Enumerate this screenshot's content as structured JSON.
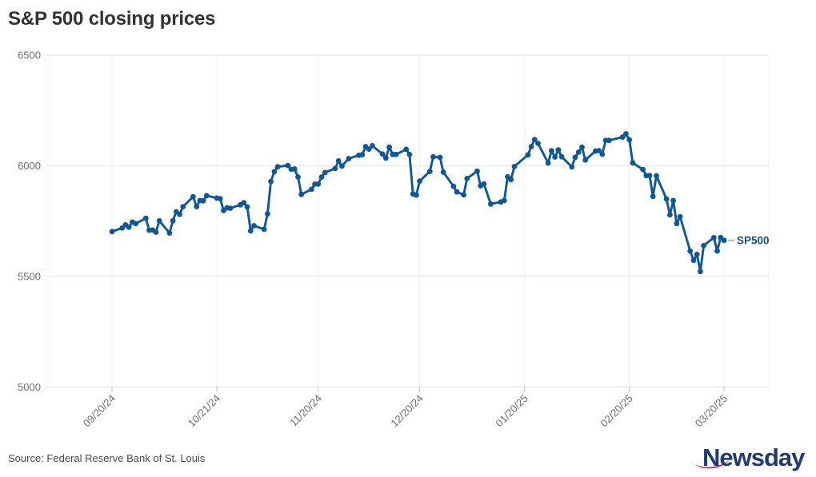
{
  "title": "S&P 500 closing prices",
  "source": "Source: Federal Reserve Bank of St. Louis",
  "footer": {
    "logo_text": "Newsday"
  },
  "colors": {
    "line": "#0f5895",
    "point": "#0f5895",
    "end_label": "#14517f",
    "leader_dash": "#9a9a9a",
    "h_grid": "#e2e2e2",
    "v_grid": "#f0f0f0",
    "tick": "#c9c9c9",
    "axis_text": "#6e6e6e",
    "title_text": "#323232",
    "logo_navy": "#1e3c6f",
    "logo_red": "#cc2333"
  },
  "chart_data": {
    "type": "line",
    "title": "S&P 500 closing prices",
    "xlabel": "",
    "ylabel": "",
    "ylim": [
      5000,
      6500
    ],
    "grid": "both",
    "legend_position": "end-of-line",
    "x_range": [
      "2024-09-20",
      "2025-03-20"
    ],
    "y_ticks": [
      6500,
      6000,
      5500,
      5000
    ],
    "x_ticks": [
      {
        "date": "2024-09-20",
        "label": "09/20/24"
      },
      {
        "date": "2024-10-21",
        "label": "10/21/24"
      },
      {
        "date": "2024-11-20",
        "label": "11/20/24"
      },
      {
        "date": "2024-12-20",
        "label": "12/20/24"
      },
      {
        "date": "2025-01-20",
        "label": "01/20/25"
      },
      {
        "date": "2025-02-20",
        "label": "02/20/25"
      },
      {
        "date": "2025-03-20",
        "label": "03/20/25"
      }
    ],
    "series": [
      {
        "name": "SP500",
        "data": [
          [
            "2024-09-20",
            5702.55
          ],
          [
            "2024-09-23",
            5718.57
          ],
          [
            "2024-09-24",
            5732.93
          ],
          [
            "2024-09-25",
            5722.26
          ],
          [
            "2024-09-26",
            5745.37
          ],
          [
            "2024-09-27",
            5738.17
          ],
          [
            "2024-09-30",
            5762.48
          ],
          [
            "2024-10-01",
            5708.75
          ],
          [
            "2024-10-02",
            5709.54
          ],
          [
            "2024-10-03",
            5699.94
          ],
          [
            "2024-10-04",
            5751.07
          ],
          [
            "2024-10-07",
            5695.94
          ],
          [
            "2024-10-08",
            5751.13
          ],
          [
            "2024-10-09",
            5792.04
          ],
          [
            "2024-10-10",
            5780.05
          ],
          [
            "2024-10-11",
            5815.03
          ],
          [
            "2024-10-14",
            5859.85
          ],
          [
            "2024-10-15",
            5815.26
          ],
          [
            "2024-10-16",
            5842.47
          ],
          [
            "2024-10-17",
            5841.47
          ],
          [
            "2024-10-18",
            5864.67
          ],
          [
            "2024-10-21",
            5853.98
          ],
          [
            "2024-10-22",
            5851.2
          ],
          [
            "2024-10-23",
            5797.42
          ],
          [
            "2024-10-24",
            5809.86
          ],
          [
            "2024-10-25",
            5808.12
          ],
          [
            "2024-10-28",
            5823.52
          ],
          [
            "2024-10-29",
            5832.92
          ],
          [
            "2024-10-30",
            5813.67
          ],
          [
            "2024-10-31",
            5705.45
          ],
          [
            "2024-11-01",
            5728.8
          ],
          [
            "2024-11-04",
            5712.69
          ],
          [
            "2024-11-05",
            5782.76
          ],
          [
            "2024-11-06",
            5929.04
          ],
          [
            "2024-11-07",
            5973.1
          ],
          [
            "2024-11-08",
            5995.54
          ],
          [
            "2024-11-11",
            6001.35
          ],
          [
            "2024-11-12",
            5983.99
          ],
          [
            "2024-11-13",
            5985.38
          ],
          [
            "2024-11-14",
            5949.17
          ],
          [
            "2024-11-15",
            5870.62
          ],
          [
            "2024-11-18",
            5893.62
          ],
          [
            "2024-11-19",
            5916.98
          ],
          [
            "2024-11-20",
            5917.11
          ],
          [
            "2024-11-21",
            5948.71
          ],
          [
            "2024-11-22",
            5969.34
          ],
          [
            "2024-11-25",
            5987.37
          ],
          [
            "2024-11-26",
            6021.63
          ],
          [
            "2024-11-27",
            5998.74
          ],
          [
            "2024-11-29",
            6032.38
          ],
          [
            "2024-12-02",
            6047.15
          ],
          [
            "2024-12-03",
            6049.88
          ],
          [
            "2024-12-04",
            6086.49
          ],
          [
            "2024-12-05",
            6075.11
          ],
          [
            "2024-12-06",
            6090.27
          ],
          [
            "2024-12-09",
            6052.85
          ],
          [
            "2024-12-10",
            6034.91
          ],
          [
            "2024-12-11",
            6084.19
          ],
          [
            "2024-12-12",
            6051.25
          ],
          [
            "2024-12-13",
            6051.09
          ],
          [
            "2024-12-16",
            6074.08
          ],
          [
            "2024-12-17",
            6050.61
          ],
          [
            "2024-12-18",
            5872.16
          ],
          [
            "2024-12-19",
            5867.08
          ],
          [
            "2024-12-20",
            5930.85
          ],
          [
            "2024-12-23",
            5974.07
          ],
          [
            "2024-12-24",
            6040.04
          ],
          [
            "2024-12-26",
            6037.59
          ],
          [
            "2024-12-27",
            5970.84
          ],
          [
            "2024-12-30",
            5906.94
          ],
          [
            "2024-12-31",
            5881.63
          ],
          [
            "2025-01-02",
            5868.55
          ],
          [
            "2025-01-03",
            5942.47
          ],
          [
            "2025-01-06",
            5975.38
          ],
          [
            "2025-01-07",
            5909.03
          ],
          [
            "2025-01-08",
            5918.25
          ],
          [
            "2025-01-10",
            5827.04
          ],
          [
            "2025-01-13",
            5836.22
          ],
          [
            "2025-01-14",
            5842.91
          ],
          [
            "2025-01-15",
            5949.91
          ],
          [
            "2025-01-16",
            5937.34
          ],
          [
            "2025-01-17",
            5996.66
          ],
          [
            "2025-01-21",
            6049.24
          ],
          [
            "2025-01-22",
            6086.37
          ],
          [
            "2025-01-23",
            6118.71
          ],
          [
            "2025-01-24",
            6101.24
          ],
          [
            "2025-01-27",
            6012.28
          ],
          [
            "2025-01-28",
            6067.7
          ],
          [
            "2025-01-29",
            6039.31
          ],
          [
            "2025-01-30",
            6071.17
          ],
          [
            "2025-01-31",
            6040.53
          ],
          [
            "2025-02-03",
            5994.57
          ],
          [
            "2025-02-04",
            6037.88
          ],
          [
            "2025-02-05",
            6061.48
          ],
          [
            "2025-02-06",
            6083.57
          ],
          [
            "2025-02-07",
            6025.99
          ],
          [
            "2025-02-10",
            6066.44
          ],
          [
            "2025-02-11",
            6068.5
          ],
          [
            "2025-02-12",
            6051.97
          ],
          [
            "2025-02-13",
            6115.07
          ],
          [
            "2025-02-14",
            6114.63
          ],
          [
            "2025-02-18",
            6129.58
          ],
          [
            "2025-02-19",
            6144.15
          ],
          [
            "2025-02-20",
            6117.52
          ],
          [
            "2025-02-21",
            6013.13
          ],
          [
            "2025-02-24",
            5983.25
          ],
          [
            "2025-02-25",
            5955.25
          ],
          [
            "2025-02-26",
            5956.06
          ],
          [
            "2025-02-27",
            5861.57
          ],
          [
            "2025-02-28",
            5954.5
          ],
          [
            "2025-03-03",
            5849.72
          ],
          [
            "2025-03-04",
            5778.15
          ],
          [
            "2025-03-05",
            5842.63
          ],
          [
            "2025-03-06",
            5738.52
          ],
          [
            "2025-03-07",
            5770.2
          ],
          [
            "2025-03-10",
            5614.56
          ],
          [
            "2025-03-11",
            5572.07
          ],
          [
            "2025-03-12",
            5599.3
          ],
          [
            "2025-03-13",
            5521.52
          ],
          [
            "2025-03-14",
            5638.94
          ],
          [
            "2025-03-17",
            5675.12
          ],
          [
            "2025-03-18",
            5614.66
          ],
          [
            "2025-03-19",
            5675.29
          ],
          [
            "2025-03-20",
            5662.89
          ]
        ]
      }
    ]
  }
}
